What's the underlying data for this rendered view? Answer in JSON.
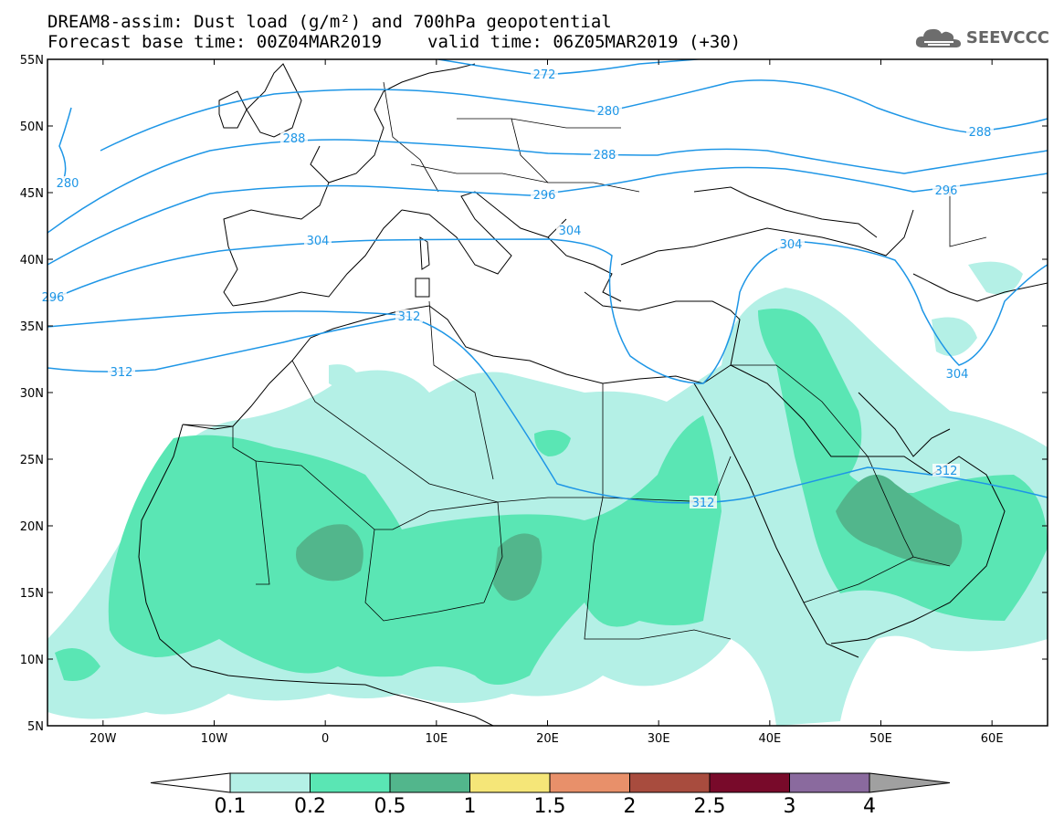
{
  "header": {
    "title_line1": "DREAM8-assim: Dust load (g/m²) and 700hPa geopotential",
    "base_time": "Forecast base time: 00Z04MAR2019",
    "valid_time": "valid time: 06Z05MAR2019 (+30)"
  },
  "logo": {
    "text": "SEEVCCC",
    "icon": "cloud-icon"
  },
  "map": {
    "lat_range": [
      5,
      55
    ],
    "lon_range": [
      -25,
      65
    ],
    "lat_labels": [
      "55N",
      "50N",
      "45N",
      "40N",
      "35N",
      "30N",
      "25N",
      "20N",
      "15N",
      "10N",
      "5N"
    ],
    "lon_labels": [
      "20W",
      "10W",
      "0",
      "10E",
      "20E",
      "30E",
      "40E",
      "50E",
      "60E"
    ],
    "contour_labels": [
      "272",
      "280",
      "280",
      "288",
      "288",
      "288",
      "296",
      "296",
      "296",
      "304",
      "304",
      "304",
      "304",
      "312",
      "312",
      "312",
      "312"
    ]
  },
  "colorbar": {
    "ticks": [
      "0.1",
      "0.2",
      "0.5",
      "1",
      "1.5",
      "2",
      "2.5",
      "3",
      "4"
    ],
    "colors": [
      "#b4f0e6",
      "#5ae6b4",
      "#52b68c",
      "#f5e678",
      "#e8906a",
      "#a84c3e",
      "#780a2a",
      "#8a6a9e"
    ],
    "min_arrow_color": "#ffffff",
    "max_arrow_color": "#a0a0a0"
  }
}
